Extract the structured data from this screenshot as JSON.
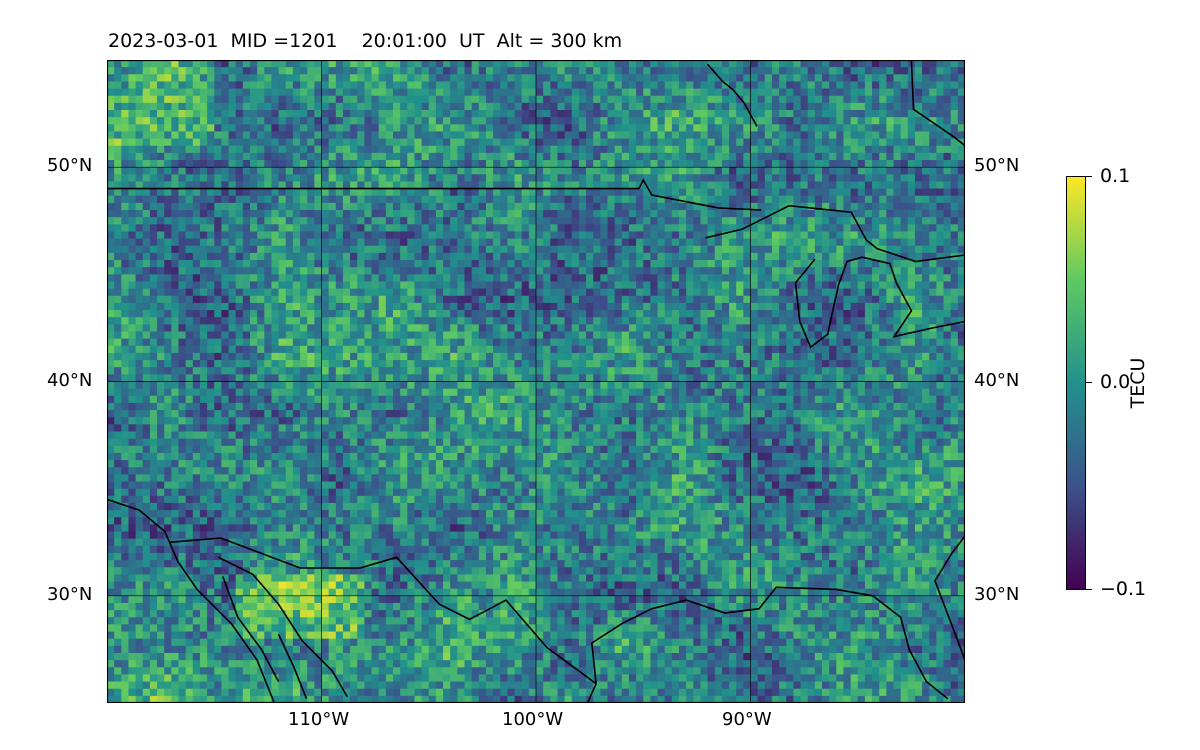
{
  "title": "2023-03-01  MID =1201    20:01:00  UT  Alt = 300 km",
  "map": {
    "lon_range": [
      -120,
      -80
    ],
    "lat_range": [
      25,
      55
    ],
    "grid_lons": [
      -110,
      -100,
      -90
    ],
    "grid_lats": [
      30,
      40,
      50
    ],
    "x_tick_labels": [
      "110°W",
      "100°W",
      "90°W"
    ],
    "y_tick_labels": [
      "30°N",
      "40°N",
      "50°N"
    ],
    "colormap": "viridis",
    "field": "TEC perturbation, noisy mesoscale pattern, stronger positive values over northern Mexico and near 52°N 106°W"
  },
  "colorbar": {
    "label": "TECU",
    "min": -0.1,
    "max": 0.1,
    "tick_labels": [
      "0.1",
      "0.0",
      "−0.1"
    ],
    "colors": [
      "#440154",
      "#3b528b",
      "#21918c",
      "#5ec962",
      "#fde725"
    ]
  }
}
